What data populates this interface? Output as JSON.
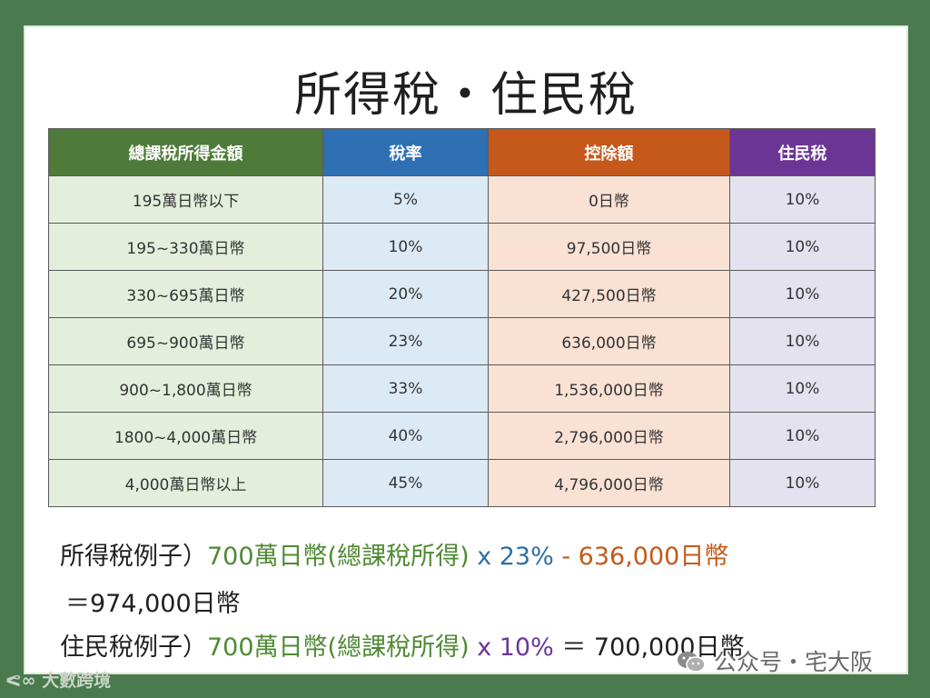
{
  "slide": {
    "title": "所得稅・住民稅"
  },
  "table": {
    "headers": [
      "總課稅所得金額",
      "稅率",
      "控除額",
      "住民稅"
    ],
    "rows": [
      [
        "195萬日幣以下",
        "5%",
        "0日幣",
        "10%"
      ],
      [
        "195~330萬日幣",
        "10%",
        "97,500日幣",
        "10%"
      ],
      [
        "330~695萬日幣",
        "20%",
        "427,500日幣",
        "10%"
      ],
      [
        "695~900萬日幣",
        "23%",
        "636,000日幣",
        "10%"
      ],
      [
        "900~1,800萬日幣",
        "33%",
        "1,536,000日幣",
        "10%"
      ],
      [
        "1800~4,000萬日幣",
        "40%",
        "2,796,000日幣",
        "10%"
      ],
      [
        "4,000萬日幣以上",
        "45%",
        "4,796,000日幣",
        "10%"
      ]
    ],
    "header_colors": [
      "#4e7b39",
      "#2f6fb4",
      "#c4591b",
      "#6b3595"
    ]
  },
  "examples": {
    "income_tax": {
      "label": "所得稅例子）",
      "base": "700萬日幣(總課稅所得)",
      "rate": " x 23%",
      "deduction": " - 636,000日幣",
      "result": "＝974,000日幣"
    },
    "resident_tax": {
      "label": "住民稅例子）",
      "base": "700萬日幣(總課稅所得)",
      "rate": "  x 10%",
      "result": " ＝ 700,000日幣"
    }
  },
  "watermarks": {
    "wechat": "公众号・宅大阪",
    "corner": "大數跨境",
    "wechat_icon": "wechat-icon"
  }
}
